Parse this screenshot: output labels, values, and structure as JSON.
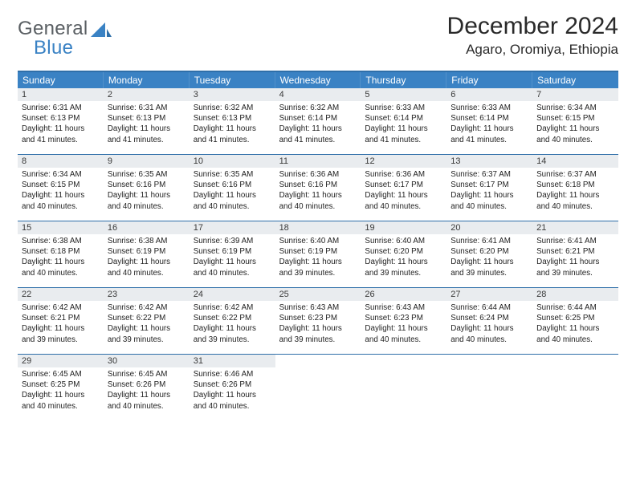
{
  "brand": {
    "word1": "General",
    "word2": "Blue"
  },
  "title": "December 2024",
  "location": "Agaro, Oromiya, Ethiopia",
  "colors": {
    "header_bar": "#3a82c4",
    "rule": "#2f6fa9",
    "daynum_bg": "#e9ecef",
    "text": "#222222",
    "brand_gray": "#5a5f63",
    "brand_blue": "#3a82c4",
    "background": "#ffffff"
  },
  "layout": {
    "columns": 7,
    "rows": 5,
    "daynum_fontsize": 11,
    "body_fontsize": 9.8,
    "dow_fontsize": 12,
    "title_fontsize": 30,
    "location_fontsize": 17
  },
  "dow": [
    "Sunday",
    "Monday",
    "Tuesday",
    "Wednesday",
    "Thursday",
    "Friday",
    "Saturday"
  ],
  "days": [
    {
      "n": "1",
      "sr": "6:31 AM",
      "ss": "6:13 PM",
      "dl": "11 hours and 41 minutes."
    },
    {
      "n": "2",
      "sr": "6:31 AM",
      "ss": "6:13 PM",
      "dl": "11 hours and 41 minutes."
    },
    {
      "n": "3",
      "sr": "6:32 AM",
      "ss": "6:13 PM",
      "dl": "11 hours and 41 minutes."
    },
    {
      "n": "4",
      "sr": "6:32 AM",
      "ss": "6:14 PM",
      "dl": "11 hours and 41 minutes."
    },
    {
      "n": "5",
      "sr": "6:33 AM",
      "ss": "6:14 PM",
      "dl": "11 hours and 41 minutes."
    },
    {
      "n": "6",
      "sr": "6:33 AM",
      "ss": "6:14 PM",
      "dl": "11 hours and 41 minutes."
    },
    {
      "n": "7",
      "sr": "6:34 AM",
      "ss": "6:15 PM",
      "dl": "11 hours and 40 minutes."
    },
    {
      "n": "8",
      "sr": "6:34 AM",
      "ss": "6:15 PM",
      "dl": "11 hours and 40 minutes."
    },
    {
      "n": "9",
      "sr": "6:35 AM",
      "ss": "6:16 PM",
      "dl": "11 hours and 40 minutes."
    },
    {
      "n": "10",
      "sr": "6:35 AM",
      "ss": "6:16 PM",
      "dl": "11 hours and 40 minutes."
    },
    {
      "n": "11",
      "sr": "6:36 AM",
      "ss": "6:16 PM",
      "dl": "11 hours and 40 minutes."
    },
    {
      "n": "12",
      "sr": "6:36 AM",
      "ss": "6:17 PM",
      "dl": "11 hours and 40 minutes."
    },
    {
      "n": "13",
      "sr": "6:37 AM",
      "ss": "6:17 PM",
      "dl": "11 hours and 40 minutes."
    },
    {
      "n": "14",
      "sr": "6:37 AM",
      "ss": "6:18 PM",
      "dl": "11 hours and 40 minutes."
    },
    {
      "n": "15",
      "sr": "6:38 AM",
      "ss": "6:18 PM",
      "dl": "11 hours and 40 minutes."
    },
    {
      "n": "16",
      "sr": "6:38 AM",
      "ss": "6:19 PM",
      "dl": "11 hours and 40 minutes."
    },
    {
      "n": "17",
      "sr": "6:39 AM",
      "ss": "6:19 PM",
      "dl": "11 hours and 40 minutes."
    },
    {
      "n": "18",
      "sr": "6:40 AM",
      "ss": "6:19 PM",
      "dl": "11 hours and 39 minutes."
    },
    {
      "n": "19",
      "sr": "6:40 AM",
      "ss": "6:20 PM",
      "dl": "11 hours and 39 minutes."
    },
    {
      "n": "20",
      "sr": "6:41 AM",
      "ss": "6:20 PM",
      "dl": "11 hours and 39 minutes."
    },
    {
      "n": "21",
      "sr": "6:41 AM",
      "ss": "6:21 PM",
      "dl": "11 hours and 39 minutes."
    },
    {
      "n": "22",
      "sr": "6:42 AM",
      "ss": "6:21 PM",
      "dl": "11 hours and 39 minutes."
    },
    {
      "n": "23",
      "sr": "6:42 AM",
      "ss": "6:22 PM",
      "dl": "11 hours and 39 minutes."
    },
    {
      "n": "24",
      "sr": "6:42 AM",
      "ss": "6:22 PM",
      "dl": "11 hours and 39 minutes."
    },
    {
      "n": "25",
      "sr": "6:43 AM",
      "ss": "6:23 PM",
      "dl": "11 hours and 39 minutes."
    },
    {
      "n": "26",
      "sr": "6:43 AM",
      "ss": "6:23 PM",
      "dl": "11 hours and 40 minutes."
    },
    {
      "n": "27",
      "sr": "6:44 AM",
      "ss": "6:24 PM",
      "dl": "11 hours and 40 minutes."
    },
    {
      "n": "28",
      "sr": "6:44 AM",
      "ss": "6:25 PM",
      "dl": "11 hours and 40 minutes."
    },
    {
      "n": "29",
      "sr": "6:45 AM",
      "ss": "6:25 PM",
      "dl": "11 hours and 40 minutes."
    },
    {
      "n": "30",
      "sr": "6:45 AM",
      "ss": "6:26 PM",
      "dl": "11 hours and 40 minutes."
    },
    {
      "n": "31",
      "sr": "6:46 AM",
      "ss": "6:26 PM",
      "dl": "11 hours and 40 minutes."
    }
  ],
  "labels": {
    "sunrise": "Sunrise:",
    "sunset": "Sunset:",
    "daylight": "Daylight:"
  }
}
